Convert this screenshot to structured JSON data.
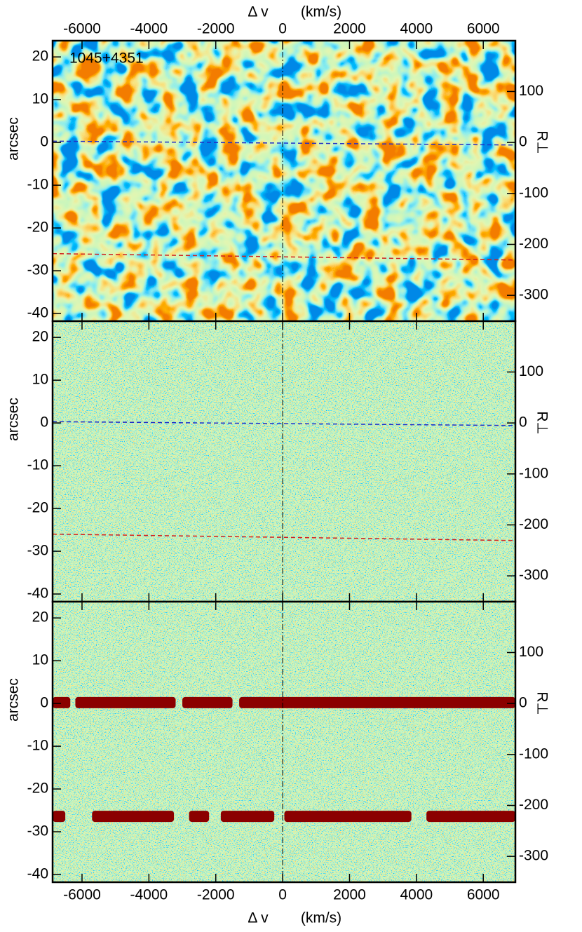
{
  "chart_data": [
    {
      "type": "image",
      "xlabel": "Δ v",
      "xunit": "(km/s)",
      "ylabel": "arcsec",
      "y2label": "R⊥",
      "annotations": [
        "1045+4351"
      ],
      "xlim": [
        -6880,
        6960
      ],
      "xticks": [
        -6000,
        -4000,
        -2000,
        0,
        2000,
        4000,
        6000
      ],
      "ylim": [
        -41.8,
        23.8
      ],
      "yticks": [
        -40,
        -30,
        -20,
        -10,
        0,
        10,
        20
      ],
      "y2lim": [
        -350.7,
        199.7
      ],
      "y2ticks": [
        -300,
        -200,
        -100,
        0,
        100
      ],
      "vline": 0,
      "texture": "smooth",
      "series": [
        {
          "color": "#2030c8",
          "x": [
            -6880,
            6960
          ],
          "values": [
            0.3,
            -0.6
          ]
        },
        {
          "color": "#d02020",
          "x": [
            -6880,
            6960
          ],
          "values": [
            -26,
            -27.5
          ]
        }
      ]
    },
    {
      "type": "image",
      "ylabel": "arcsec",
      "y2label": "R⊥",
      "xlim": [
        -6880,
        6960
      ],
      "xticks": [
        -6000,
        -4000,
        -2000,
        0,
        2000,
        4000,
        6000
      ],
      "ylim": [
        -41.8,
        23.8
      ],
      "yticks": [
        -40,
        -30,
        -20,
        -10,
        0,
        10,
        20
      ],
      "y2lim": [
        -350.7,
        199.7
      ],
      "y2ticks": [
        -300,
        -200,
        -100,
        0,
        100
      ],
      "vline": 0,
      "texture": "grainy",
      "series": [
        {
          "color": "#2030c8",
          "x": [
            -6880,
            6960
          ],
          "values": [
            0.3,
            -0.6
          ]
        },
        {
          "color": "#d02020",
          "x": [
            -6880,
            6960
          ],
          "values": [
            -26,
            -27.5
          ]
        }
      ]
    },
    {
      "type": "image",
      "xlabel": "Δ v",
      "xunit": "(km/s)",
      "ylabel": "arcsec",
      "y2label": "R⊥",
      "xlim": [
        -6880,
        6960
      ],
      "xticks": [
        -6000,
        -4000,
        -2000,
        0,
        2000,
        4000,
        6000
      ],
      "ylim": [
        -41.8,
        23.8
      ],
      "yticks": [
        -40,
        -30,
        -20,
        -10,
        0,
        10,
        20
      ],
      "y2lim": [
        -350.7,
        199.7
      ],
      "y2ticks": [
        -300,
        -200,
        -100,
        0,
        100
      ],
      "vline": 0,
      "texture": "grainy",
      "bands": [
        {
          "color": "#8b0000",
          "y": 0.2,
          "segments": [
            [
              -6880,
              -6350
            ],
            [
              -6200,
              -3200
            ],
            [
              -3000,
              -1500
            ],
            [
              -1300,
              6960
            ]
          ]
        },
        {
          "color": "#8b0000",
          "y": -26.4,
          "segments": [
            [
              -6880,
              -6500
            ],
            [
              -5700,
              -3250
            ],
            [
              -2800,
              -2200
            ],
            [
              -1850,
              -250
            ],
            [
              50,
              3850
            ],
            [
              4300,
              6960
            ]
          ]
        }
      ]
    }
  ]
}
